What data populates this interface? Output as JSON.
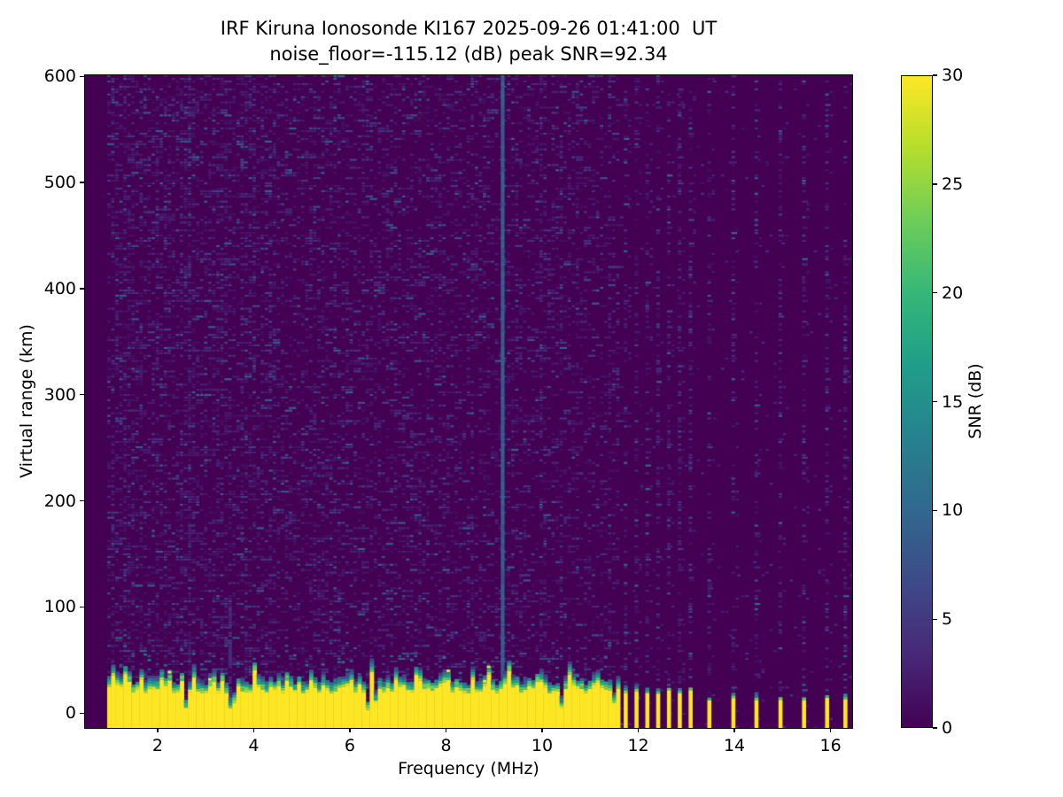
{
  "chart_data": {
    "type": "heatmap",
    "title": "IRF Kiruna Ionosonde KI167 2025-09-26 01:41:00  UT",
    "subtitle": "noise_floor=-115.12 (dB) peak SNR=92.34",
    "station": "KI167",
    "datetime_ut": "2025-09-26 01:41:00",
    "noise_floor_db": -115.12,
    "peak_snr_db": 92.34,
    "xlabel": "Frequency (MHz)",
    "ylabel": "Virtual range (km)",
    "x_ticks": [
      2,
      4,
      6,
      8,
      10,
      12,
      14,
      16
    ],
    "y_ticks": [
      0,
      100,
      200,
      300,
      400,
      500,
      600
    ],
    "x_range_mhz": [
      0.49,
      16.45
    ],
    "y_range_km": [
      -14,
      601
    ],
    "grid": false,
    "colorbar": {
      "label": "SNR (dB)",
      "min": 0,
      "max": 30,
      "ticks": [
        0,
        5,
        10,
        15,
        20,
        25,
        30
      ]
    },
    "colormap": {
      "name": "viridis",
      "stops": [
        "#440154",
        "#482878",
        "#3e4a89",
        "#31688e",
        "#26828e",
        "#1f9e89",
        "#35b779",
        "#6dcd59",
        "#b4de2c",
        "#fde725"
      ]
    },
    "features": {
      "background_snr_db": 0,
      "speckle_noise_snr_db": [
        1,
        9
      ],
      "no_data_below_mhz": 0.95,
      "rfi_line_mhz": 9.17,
      "rfi_line_snr_db": 9,
      "faint_line_mhz": 3.5,
      "faint_line_extent_km": [
        0,
        100
      ],
      "ground_echo": {
        "f_start_mhz": 0.95,
        "f_end_mhz": 11.58,
        "snr_db": 30,
        "top_km_typical": [
          15,
          45
        ],
        "notch_freqs_mhz": [
          3.5,
          6.3
        ]
      },
      "stepped_columns_dense_mhz": [
        11.73,
        11.955,
        12.18,
        12.405,
        12.63,
        12.855,
        13.08
      ],
      "stepped_columns_sparse_mhz": [
        13.47,
        13.97,
        14.45,
        14.95,
        15.44,
        15.92,
        16.3
      ],
      "stepped_column_top_km": [
        12,
        24
      ]
    },
    "seed": 20250926
  }
}
